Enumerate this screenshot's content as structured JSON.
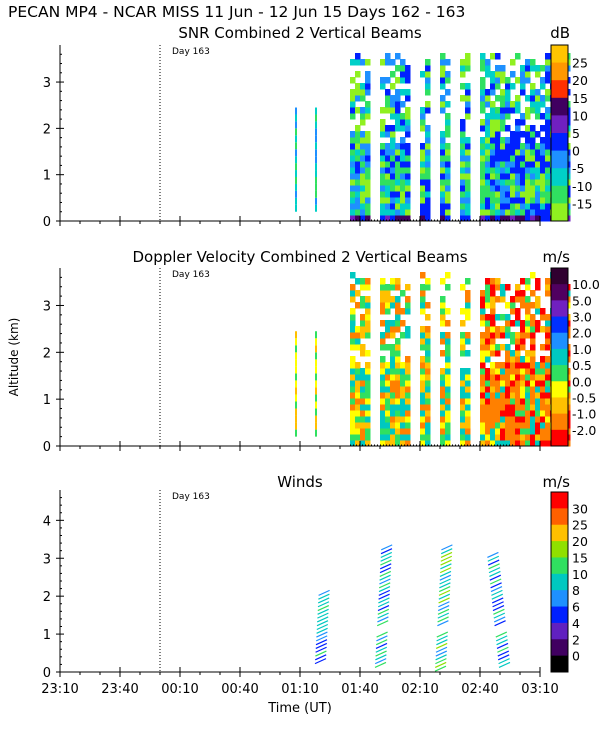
{
  "header": {
    "title": "PECAN MP4 - NCAR MISS  11 Jun - 12 Jun 15 Days 162 - 163"
  },
  "chart_data": [
    {
      "type": "heatmap",
      "title": "SNR Combined 2 Vertical Beams",
      "units": "dB",
      "day_label": "Day 163",
      "ylabel": "",
      "ylim": [
        0,
        3.8
      ],
      "yticks": [
        "0",
        "1",
        "2",
        "3"
      ],
      "xticks": [
        "23:10",
        "23:40",
        "00:10",
        "00:40",
        "01:10",
        "01:40",
        "02:10",
        "02:40",
        "03:10"
      ],
      "colorbar": {
        "labels": [
          "25",
          "20",
          "15",
          "10",
          "5",
          "0",
          "-5",
          "-10",
          "-15"
        ],
        "colors": [
          "#ffc400",
          "#ff9800",
          "#ff3000",
          "#400060",
          "#7020c0",
          "#0020ff",
          "#1e90ff",
          "#00d0c8",
          "#30e060",
          "#90f020"
        ]
      }
    },
    {
      "type": "heatmap",
      "title": "Doppler Velocity Combined 2 Vertical Beams",
      "units": "m/s",
      "day_label": "Day 163",
      "ylabel": "Altitude (km)",
      "ylim": [
        0,
        3.8
      ],
      "yticks": [
        "0",
        "1",
        "2",
        "3"
      ],
      "xticks": [
        "23:10",
        "23:40",
        "00:10",
        "00:40",
        "01:10",
        "01:40",
        "02:10",
        "02:40",
        "03:10"
      ],
      "colorbar": {
        "labels": [
          "10.0",
          "5.0",
          "3.0",
          "2.0",
          "1.0",
          "0.5",
          "0.0",
          "-0.5",
          "-1.0",
          "-2.0"
        ],
        "colors": [
          "#300030",
          "#500060",
          "#7020c0",
          "#0030ff",
          "#1e90ff",
          "#00c8c0",
          "#30e060",
          "#ffff00",
          "#ffc000",
          "#ff8000",
          "#ff0000"
        ]
      }
    },
    {
      "type": "scatter",
      "title": "Winds",
      "units": "m/s",
      "day_label": "Day 163",
      "xlabel": "Time (UT)",
      "ylim": [
        0,
        4.8
      ],
      "yticks": [
        "0",
        "1",
        "2",
        "3",
        "4"
      ],
      "xticks": [
        "23:10",
        "23:40",
        "00:10",
        "00:40",
        "01:10",
        "01:40",
        "02:10",
        "02:40",
        "03:10"
      ],
      "colorbar": {
        "labels": [
          "30",
          "25",
          "20",
          "15",
          "10",
          "8",
          "6",
          "4",
          "2",
          "0"
        ],
        "colors": [
          "#ff0000",
          "#ff6000",
          "#ffc000",
          "#90e000",
          "#30e060",
          "#00c8c0",
          "#1e90ff",
          "#0020ff",
          "#6020c0",
          "#400060",
          "#000000"
        ]
      },
      "profiles": [
        {
          "time": "01:20",
          "bottom": 0.3,
          "top": 2.2
        },
        {
          "time": "01:50",
          "bottom": 0.2,
          "top": 3.4
        },
        {
          "time": "02:20",
          "bottom": 0.1,
          "top": 3.4
        },
        {
          "time": "02:52",
          "bottom": 0.2,
          "top": 3.2
        }
      ]
    }
  ]
}
